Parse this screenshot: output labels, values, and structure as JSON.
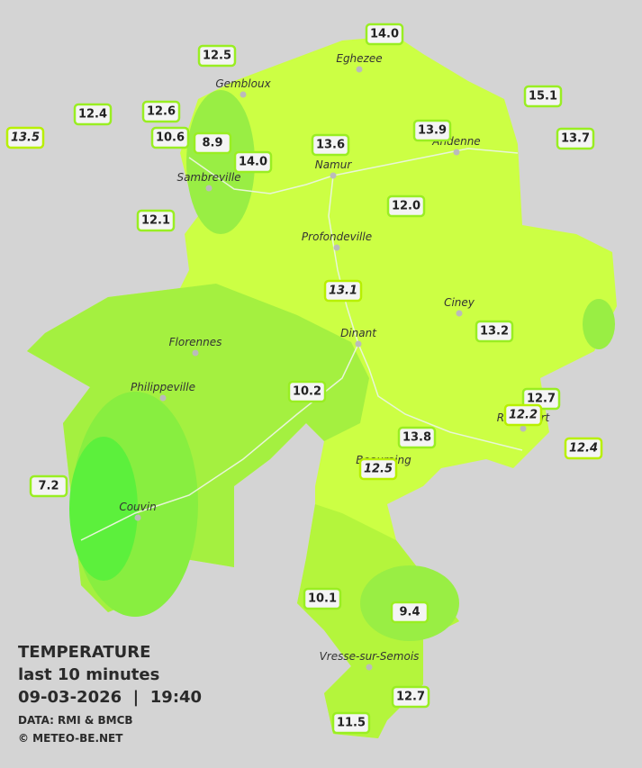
{
  "legend": {
    "title": "TEMPERATURE",
    "period": "last 10 minutes",
    "datetime": "09-03-2026  |  19:40",
    "source": "DATA: RMI & BMCB",
    "copyright": "© METEO-BE.NET"
  },
  "cities": [
    "Eghezee",
    "Gembloux",
    "Andenne",
    "Namur",
    "Sambreville",
    "Profondeville",
    "Ciney",
    "Dinant",
    "Florennes",
    "Philippeville",
    "Rochefort",
    "Beauraing",
    "Couvin",
    "Vresse-sur-Semois"
  ],
  "stations": [
    {
      "label": "12.5",
      "italic": false
    },
    {
      "label": "14.0",
      "italic": false
    },
    {
      "label": "15.1",
      "italic": false
    },
    {
      "label": "12.4",
      "italic": false
    },
    {
      "label": "12.6",
      "italic": false
    },
    {
      "label": "13.5",
      "italic": true
    },
    {
      "label": "10.6",
      "italic": false
    },
    {
      "label": "8.9",
      "italic": false
    },
    {
      "label": "13.9",
      "italic": false
    },
    {
      "label": "13.6",
      "italic": false
    },
    {
      "label": "13.7",
      "italic": false
    },
    {
      "label": "14.0",
      "italic": false
    },
    {
      "label": "12.1",
      "italic": false
    },
    {
      "label": "12.0",
      "italic": false
    },
    {
      "label": "13.1",
      "italic": true
    },
    {
      "label": "13.2",
      "italic": false
    },
    {
      "label": "10.2",
      "italic": false
    },
    {
      "label": "12.7",
      "italic": false
    },
    {
      "label": "12.2",
      "italic": true
    },
    {
      "label": "12.4",
      "italic": true
    },
    {
      "label": "13.8",
      "italic": false
    },
    {
      "label": "12.5",
      "italic": true
    },
    {
      "label": "7.2",
      "italic": false
    },
    {
      "label": "10.1",
      "italic": false
    },
    {
      "label": "9.4",
      "italic": false
    },
    {
      "label": "12.7",
      "italic": false
    },
    {
      "label": "11.5",
      "italic": false
    }
  ]
}
